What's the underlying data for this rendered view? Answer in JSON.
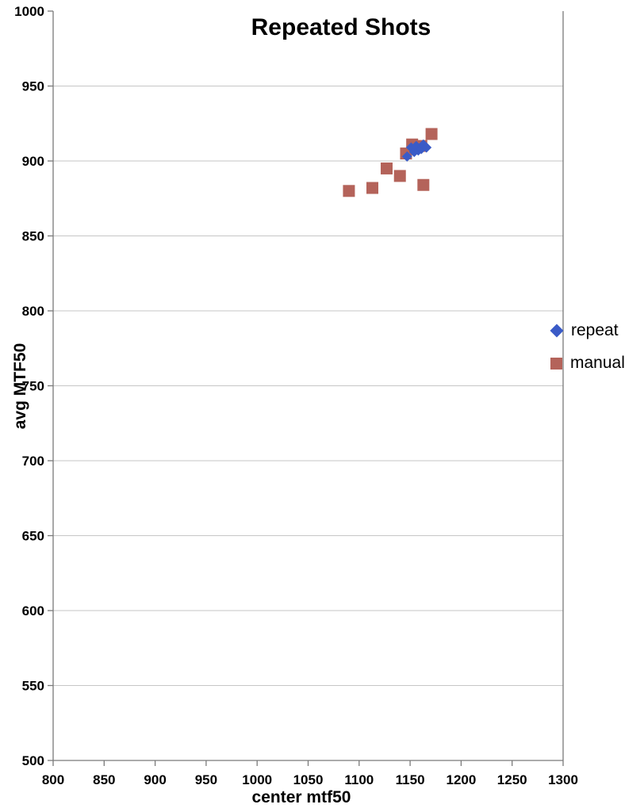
{
  "chart_data": {
    "type": "scatter",
    "title": "Repeated Shots",
    "xlabel": "center mtf50",
    "ylabel": "avg MTF50",
    "xlim": [
      800,
      1300
    ],
    "ylim": [
      500,
      1000
    ],
    "x_ticks": [
      800,
      850,
      900,
      950,
      1000,
      1050,
      1100,
      1150,
      1200,
      1250,
      1300
    ],
    "y_ticks": [
      500,
      550,
      600,
      650,
      700,
      750,
      800,
      850,
      900,
      950,
      1000
    ],
    "grid": "horizontal",
    "legend_position": "right",
    "colors": {
      "gridline": "#C6C6C6",
      "axis": "#7a7a7a",
      "background": "#ffffff"
    },
    "series": [
      {
        "name": "repeat",
        "marker": "diamond",
        "color": "#3A5BC7",
        "points": [
          [
            1147,
            903
          ],
          [
            1151,
            909
          ],
          [
            1154,
            906
          ],
          [
            1156,
            910
          ],
          [
            1158,
            907
          ],
          [
            1161,
            908
          ],
          [
            1163,
            911
          ],
          [
            1166,
            909
          ]
        ]
      },
      {
        "name": "manual",
        "marker": "square",
        "color": "#B4635A",
        "points": [
          [
            1090,
            880
          ],
          [
            1113,
            882
          ],
          [
            1127,
            895
          ],
          [
            1140,
            890
          ],
          [
            1146,
            905
          ],
          [
            1152,
            911
          ],
          [
            1161,
            910
          ],
          [
            1163,
            884
          ],
          [
            1171,
            918
          ]
        ]
      }
    ]
  }
}
